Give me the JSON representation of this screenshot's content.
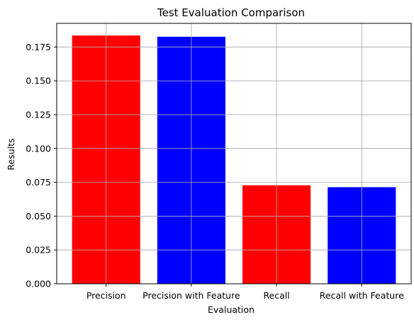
{
  "chart_data": {
    "type": "bar",
    "title": "Test Evaluation Comparison",
    "xlabel": "Evaluation",
    "ylabel": "Results",
    "categories": [
      "Precision",
      "Precision with Feature",
      "Recall",
      "Recall with Feature"
    ],
    "values": [
      0.1835,
      0.1826,
      0.0728,
      0.0714
    ],
    "bar_colors": [
      "#ff0000",
      "#0000ff",
      "#ff0000",
      "#0000ff"
    ],
    "ylim": [
      0,
      0.1925
    ],
    "yticks": [
      0.0,
      0.025,
      0.05,
      0.075,
      0.1,
      0.125,
      0.15,
      0.175
    ],
    "ytick_labels": [
      "0.000",
      "0.025",
      "0.050",
      "0.075",
      "0.100",
      "0.125",
      "0.150",
      "0.175"
    ],
    "grid": true,
    "legend": "none"
  }
}
